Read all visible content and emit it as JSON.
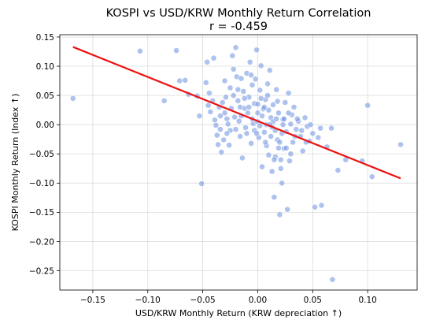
{
  "chart_data": {
    "type": "scatter",
    "title": "KOSPI vs USD/KRW Monthly Return Correlation",
    "subtitle": "r = -0.459",
    "xlabel": "USD/KRW Monthly Return (KRW depreciation ↑)",
    "ylabel": "KOSPI Monthly Return (Index ↑)",
    "xlim": [
      -0.18,
      0.145
    ],
    "ylim": [
      -0.283,
      0.154
    ],
    "xticks": [
      -0.15,
      -0.1,
      -0.05,
      0.0,
      0.05,
      0.1
    ],
    "xtick_labels": [
      "−0.15",
      "−0.10",
      "−0.05",
      "0.00",
      "0.05",
      "0.10"
    ],
    "yticks": [
      0.15,
      0.1,
      0.05,
      0.0,
      -0.05,
      -0.1,
      -0.15,
      -0.2,
      -0.25
    ],
    "ytick_labels": [
      "0.15",
      "0.10",
      "0.05",
      "0.00",
      "−0.05",
      "−0.10",
      "−0.15",
      "−0.20",
      "−0.25"
    ],
    "grid": true,
    "colors": {
      "points": "#6b8fe0",
      "trend": "#ee1111"
    },
    "trend_line": {
      "x": [
        -0.168,
        0.13
      ],
      "y": [
        0.133,
        -0.092
      ]
    },
    "points": [
      [
        -0.168,
        0.045
      ],
      [
        -0.107,
        0.126
      ],
      [
        -0.085,
        0.041
      ],
      [
        -0.074,
        0.127
      ],
      [
        -0.071,
        0.075
      ],
      [
        -0.066,
        0.076
      ],
      [
        -0.063,
        0.052
      ],
      [
        -0.055,
        0.049
      ],
      [
        -0.053,
        0.015
      ],
      [
        -0.051,
        -0.101
      ],
      [
        -0.047,
        0.072
      ],
      [
        -0.046,
        0.107
      ],
      [
        -0.045,
        0.033
      ],
      [
        -0.044,
        0.054
      ],
      [
        -0.043,
        0.022
      ],
      [
        -0.041,
        0.041
      ],
      [
        -0.04,
        0.114
      ],
      [
        -0.039,
        0.008
      ],
      [
        -0.038,
        -0.001
      ],
      [
        -0.037,
        -0.018
      ],
      [
        -0.036,
        -0.034
      ],
      [
        -0.035,
        0.03
      ],
      [
        -0.034,
        -0.008
      ],
      [
        -0.033,
        -0.047
      ],
      [
        -0.032,
        0.038
      ],
      [
        -0.031,
        -0.026
      ],
      [
        -0.03,
        0.075
      ],
      [
        -0.029,
        0.047
      ],
      [
        -0.028,
        0.01
      ],
      [
        -0.027,
        0.001
      ],
      [
        -0.026,
        -0.035
      ],
      [
        -0.025,
        0.063
      ],
      [
        -0.024,
        0.028
      ],
      [
        -0.023,
        0.118
      ],
      [
        -0.022,
        0.095
      ],
      [
        -0.021,
        0.013
      ],
      [
        -0.02,
        0.132
      ],
      [
        -0.019,
        0.082
      ],
      [
        -0.018,
        0.041
      ],
      [
        -0.017,
        0.006
      ],
      [
        -0.016,
        -0.02
      ],
      [
        -0.015,
        0.079
      ],
      [
        -0.014,
        -0.057
      ],
      [
        -0.013,
        0.057
      ],
      [
        -0.012,
        0.028
      ],
      [
        -0.011,
        -0.005
      ],
      [
        -0.01,
        0.088
      ],
      [
        -0.009,
        0.02
      ],
      [
        -0.008,
        0.047
      ],
      [
        -0.007,
        0.107
      ],
      [
        -0.006,
        -0.032
      ],
      [
        -0.005,
        0.068
      ],
      [
        -0.004,
        0.002
      ],
      [
        -0.003,
        0.036
      ],
      [
        -0.002,
        0.078
      ],
      [
        -0.001,
        0.128
      ],
      [
        0.0,
        0.005
      ],
      [
        0.001,
        -0.022
      ],
      [
        0.002,
        0.059
      ],
      [
        0.003,
        0.101
      ],
      [
        0.004,
        -0.072
      ],
      [
        0.005,
        0.027
      ],
      [
        0.006,
        -0.013
      ],
      [
        0.007,
        0.043
      ],
      [
        0.008,
        -0.036
      ],
      [
        0.009,
        0.07
      ],
      [
        0.01,
        -0.052
      ],
      [
        0.011,
        0.093
      ],
      [
        0.012,
        0.012
      ],
      [
        0.013,
        -0.004
      ],
      [
        0.014,
        0.034
      ],
      [
        0.015,
        -0.124
      ],
      [
        0.016,
        -0.055
      ],
      [
        0.017,
        0.06
      ],
      [
        0.018,
        -0.026
      ],
      [
        0.019,
        0.02
      ],
      [
        0.02,
        -0.154
      ],
      [
        0.021,
        -0.075
      ],
      [
        0.022,
        -0.1
      ],
      [
        0.023,
        0.009
      ],
      [
        0.024,
        -0.041
      ],
      [
        0.025,
        0.038
      ],
      [
        0.026,
        -0.012
      ],
      [
        0.027,
        -0.145
      ],
      [
        0.028,
        0.054
      ],
      [
        0.029,
        -0.062
      ],
      [
        0.03,
        0.001
      ],
      [
        0.031,
        0.017
      ],
      [
        0.032,
        -0.03
      ],
      [
        0.033,
        0.03
      ],
      [
        0.035,
        -0.008
      ],
      [
        0.037,
        0.006
      ],
      [
        0.039,
        -0.02
      ],
      [
        0.041,
        -0.045
      ],
      [
        0.043,
        0.012
      ],
      [
        0.045,
        -0.003
      ],
      [
        0.047,
        -0.028
      ],
      [
        0.05,
        -0.015
      ],
      [
        0.052,
        -0.141
      ],
      [
        0.055,
        -0.022
      ],
      [
        0.057,
        -0.006
      ],
      [
        0.058,
        -0.138
      ],
      [
        0.063,
        -0.038
      ],
      [
        0.067,
        -0.006
      ],
      [
        0.068,
        -0.265
      ],
      [
        0.073,
        -0.078
      ],
      [
        0.08,
        -0.06
      ],
      [
        0.095,
        -0.062
      ],
      [
        0.1,
        0.033
      ],
      [
        0.104,
        -0.089
      ],
      [
        0.13,
        -0.034
      ],
      [
        -0.02,
        -0.008
      ],
      [
        -0.015,
        0.015
      ],
      [
        -0.01,
        -0.015
      ],
      [
        -0.008,
        0.03
      ],
      [
        -0.005,
        0.01
      ],
      [
        -0.003,
        -0.01
      ],
      [
        0.0,
        0.02
      ],
      [
        0.002,
        -0.002
      ],
      [
        0.004,
        0.015
      ],
      [
        0.006,
        0.03
      ],
      [
        0.008,
        0.0
      ],
      [
        0.01,
        0.025
      ],
      [
        0.012,
        -0.02
      ],
      [
        0.014,
        0.005
      ],
      [
        0.016,
        -0.01
      ],
      [
        0.018,
        0.04
      ],
      [
        0.02,
        -0.03
      ],
      [
        0.022,
        -0.015
      ],
      [
        0.024,
        0.01
      ],
      [
        0.026,
        -0.04
      ],
      [
        0.028,
        0.02
      ],
      [
        0.03,
        -0.05
      ],
      [
        0.034,
        -0.02
      ],
      [
        0.036,
        0.01
      ],
      [
        0.04,
        -0.01
      ],
      [
        0.044,
        -0.03
      ],
      [
        0.048,
        0.0
      ],
      [
        -0.03,
        0.02
      ],
      [
        -0.025,
        -0.01
      ],
      [
        -0.018,
        0.06
      ],
      [
        -0.012,
        0.045
      ],
      [
        -0.006,
        0.085
      ],
      [
        0.003,
        0.045
      ],
      [
        0.009,
        0.05
      ],
      [
        0.015,
        -0.06
      ],
      [
        0.021,
        -0.06
      ],
      [
        0.013,
        -0.08
      ],
      [
        0.019,
        -0.04
      ],
      [
        0.007,
        -0.03
      ],
      [
        -0.001,
        -0.015
      ],
      [
        -0.016,
        0.03
      ],
      [
        -0.022,
        0.05
      ],
      [
        -0.028,
        -0.015
      ],
      [
        -0.034,
        0.015
      ],
      [
        0.0,
        0.035
      ],
      [
        0.011,
        0.0
      ],
      [
        0.017,
        0.01
      ],
      [
        0.023,
        0.0
      ]
    ]
  }
}
